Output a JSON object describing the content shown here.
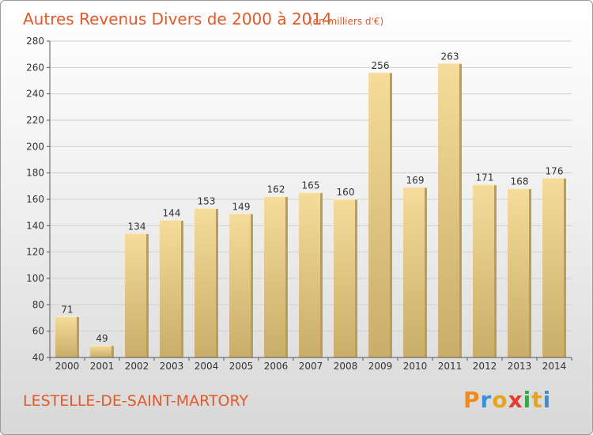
{
  "chart_data": {
    "type": "bar",
    "title": "Autres Revenus Divers de 2000 à 2014",
    "subtitle": "(en milliers d'€)",
    "categories": [
      "2000",
      "2001",
      "2002",
      "2003",
      "2004",
      "2005",
      "2006",
      "2007",
      "2008",
      "2009",
      "2010",
      "2011",
      "2012",
      "2013",
      "2014"
    ],
    "values": [
      71,
      49,
      134,
      144,
      153,
      149,
      162,
      165,
      160,
      256,
      169,
      263,
      171,
      168,
      176
    ],
    "ylim": [
      40,
      280
    ],
    "yticks": [
      40,
      60,
      80,
      100,
      120,
      140,
      160,
      180,
      200,
      220,
      240,
      260,
      280
    ],
    "grid": true,
    "bar_color_top": "#f5dc9a",
    "bar_color_bottom": "#c9ad68"
  },
  "footer": {
    "commune": "LESTELLE-DE-SAINT-MARTORY",
    "logo_text": "Proxiti",
    "logo_colors": [
      "#f08a1c",
      "#3b8fd6",
      "#e8a41a",
      "#e63b2e",
      "#3aa64a",
      "#e8a41a",
      "#3b8fd6"
    ]
  },
  "colors": {
    "title": "#e05a2a",
    "grid": "#d0d0d0",
    "axis": "#555555"
  }
}
